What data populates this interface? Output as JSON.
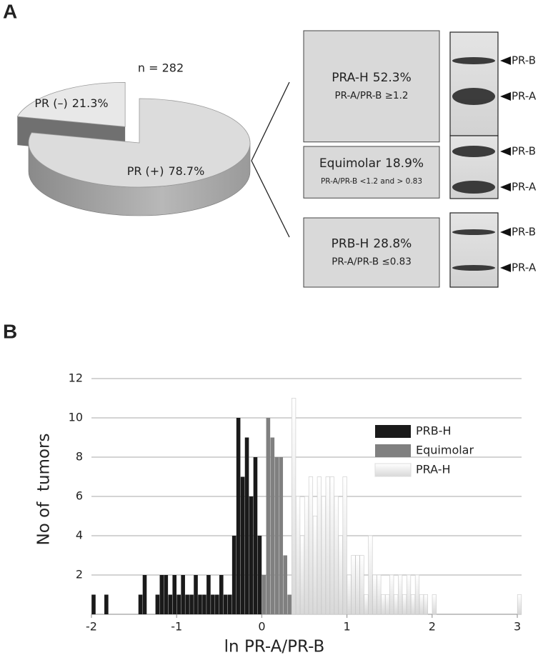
{
  "chart_data": [
    {
      "type": "pie",
      "panel": "A",
      "annotation": "n = 282",
      "categories": [
        "PR (–)",
        "PR (+)"
      ],
      "values": [
        21.3,
        78.7
      ],
      "value_labels": [
        "21.3%",
        "78.7%"
      ],
      "colors": [
        "#e8e8e8",
        "#dcdcdc"
      ],
      "breakdown": {
        "categories": [
          "PRA-H",
          "Equimolar",
          "PRB-H"
        ],
        "values": [
          52.3,
          18.9,
          28.8
        ],
        "value_labels": [
          "52.3%",
          "18.9%",
          "28.8%"
        ],
        "criteria": [
          "PR-A/PR-B ≥1.2",
          "PR-A/PR-B <1.2 and > 0.83",
          "PR-A/PR-B ≤0.83"
        ],
        "bands": [
          "PR-B",
          "PR-A"
        ]
      }
    },
    {
      "type": "histogram",
      "panel": "B",
      "xlabel": "ln PR-A/PR-B",
      "ylabel": "No of  tumors",
      "xlim": [
        -2,
        3.05
      ],
      "ylim": [
        0,
        12
      ],
      "xticks": [
        -2,
        -1,
        0,
        1,
        2,
        3
      ],
      "yticks": [
        2,
        4,
        6,
        8,
        10,
        12
      ],
      "grid": true,
      "series": [
        {
          "name": "PRB-H",
          "color": "#1a1a1a",
          "x": [
            -1.975,
            -1.825,
            -1.425,
            -1.375,
            -1.225,
            -1.175,
            -1.125,
            -1.075,
            -1.025,
            -0.975,
            -0.925,
            -0.875,
            -0.825,
            -0.775,
            -0.725,
            -0.675,
            -0.625,
            -0.575,
            -0.525,
            -0.475,
            -0.425,
            -0.375,
            -0.325,
            -0.275,
            -0.225,
            -0.175,
            -0.125,
            -0.075,
            -0.025
          ],
          "values": [
            1,
            1,
            1,
            2,
            1,
            2,
            2,
            1,
            2,
            1,
            2,
            1,
            1,
            2,
            1,
            1,
            2,
            1,
            1,
            2,
            1,
            1,
            4,
            10,
            7,
            9,
            6,
            8,
            4
          ]
        },
        {
          "name": "Equimolar",
          "color": "#808080",
          "x": [
            0.025,
            0.075,
            0.125,
            0.175,
            0.225,
            0.275,
            0.325
          ],
          "values": [
            2,
            10,
            9,
            8,
            8,
            3,
            1
          ]
        },
        {
          "name": "PRA-H",
          "color": "#e6e6e6",
          "x": [
            0.375,
            0.425,
            0.475,
            0.525,
            0.575,
            0.625,
            0.675,
            0.725,
            0.775,
            0.825,
            0.875,
            0.925,
            0.975,
            1.025,
            1.075,
            1.125,
            1.175,
            1.225,
            1.275,
            1.325,
            1.375,
            1.425,
            1.475,
            1.525,
            1.575,
            1.625,
            1.675,
            1.725,
            1.775,
            1.825,
            1.875,
            1.925,
            2.025,
            3.025
          ],
          "values": [
            11,
            6,
            4,
            6,
            7,
            5,
            7,
            6,
            7,
            7,
            6,
            4,
            7,
            2,
            3,
            3,
            3,
            1,
            4,
            2,
            2,
            1,
            1,
            2,
            1,
            2,
            1,
            2,
            1,
            2,
            1,
            1,
            1,
            1
          ]
        }
      ]
    }
  ]
}
